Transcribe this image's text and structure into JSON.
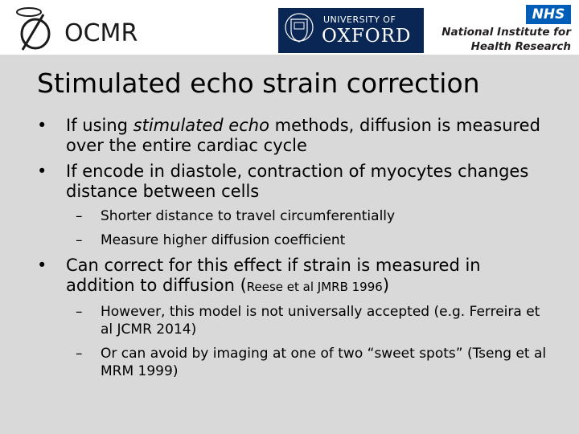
{
  "header": {
    "ocmr_logo_text": "OCMR",
    "oxford_line1": "UNIVERSITY OF",
    "oxford_line2": "OXFORD",
    "nhs_badge": "NHS",
    "nihr_line1": "National Institute for",
    "nihr_line2": "Health Research",
    "colors": {
      "oxford_blue": "#0a2654",
      "nhs_blue": "#005eb8",
      "slide_bg": "#d9d9d9"
    }
  },
  "title": "Stimulated echo strain correction",
  "bullets": {
    "b1_pre": "If using ",
    "b1_em": "stimulated echo",
    "b1_post": " methods, diffusion is measured over the entire cardiac cycle",
    "b2": "If encode in diastole, contraction of myocytes changes distance between cells",
    "b2_sub1": "Shorter distance to travel circumferentially",
    "b2_sub2": "Measure higher diffusion coefficient",
    "b3_pre": "Can correct for this effect if strain is measured in addition to diffusion (",
    "b3_cite": "Reese et al JMRB 1996",
    "b3_post": ")",
    "b3_sub1": "However, this model is not universally accepted (e.g. Ferreira et al JCMR 2014)",
    "b3_sub2": "Or can avoid by imaging at one of two “sweet spots” (Tseng et al MRM 1999)"
  },
  "markers": {
    "bullet": "•",
    "dash": "–"
  }
}
